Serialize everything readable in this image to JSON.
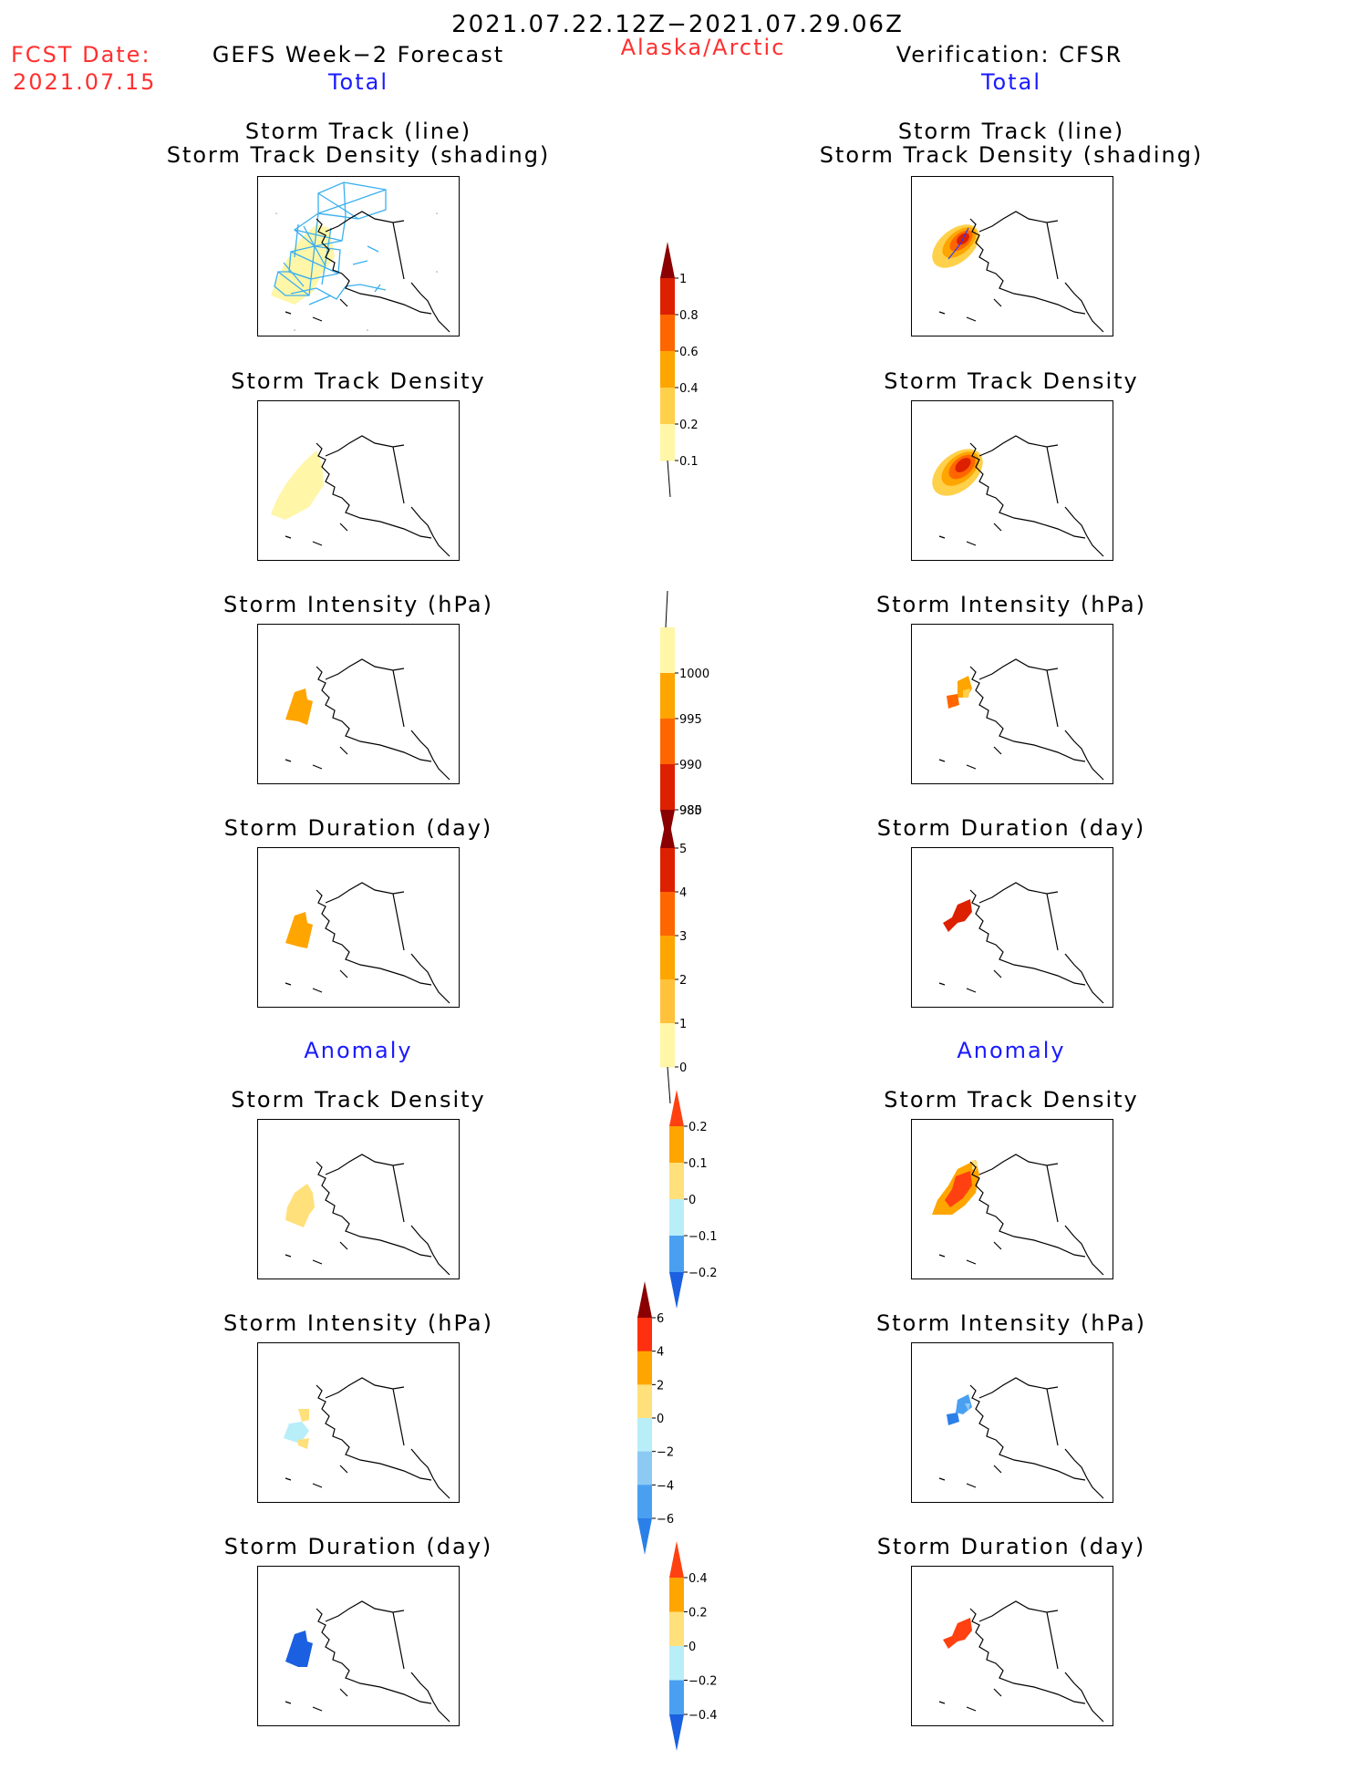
{
  "header": {
    "period": "2021.07.22.12Z−2021.07.29.06Z",
    "fcst_label": "FCST Date:",
    "fcst_date": "2021.07.15",
    "left_model": "GEFS Week−2 Forecast",
    "region": "Alaska/Arctic",
    "right_model": "Verification: CFSR"
  },
  "sections": {
    "total": "Total",
    "anomaly": "Anomaly"
  },
  "panels": {
    "track_title_1": "Storm Track (line)",
    "track_title_2": "Storm Track Density (shading)",
    "density": "Storm Track Density",
    "intensity": "Storm Intensity (hPa)",
    "duration": "Storm Duration (day)"
  },
  "colorbars": {
    "density_total": {
      "labels": [
        "1",
        "0.8",
        "0.6",
        "0.4",
        "0.2",
        "0.1"
      ],
      "colors": [
        "#8b0000",
        "#dc2000",
        "#ff6600",
        "#ffa500",
        "#ffd04a",
        "#fff6a8"
      ]
    },
    "intensity_total": {
      "labels": [
        "1000",
        "995",
        "990",
        "985",
        "980"
      ],
      "colors": [
        "#fff6a8",
        "#ffa500",
        "#ff6600",
        "#dc2000",
        "#8b0000"
      ]
    },
    "duration_total": {
      "labels": [
        "5",
        "4",
        "3",
        "2",
        "1",
        "0"
      ],
      "colors": [
        "#8b0000",
        "#dc2000",
        "#ff6600",
        "#ffa500",
        "#ffc23a",
        "#fff6a8"
      ]
    },
    "density_anom": {
      "labels": [
        "0.2",
        "0.1",
        "0",
        "−0.1",
        "−0.2"
      ],
      "colors": [
        "#ff4010",
        "#ffa500",
        "#ffe07a",
        "#b8eef8",
        "#4aa0f0",
        "#1a60e0"
      ]
    },
    "intensity_anom": {
      "labels": [
        "6",
        "4",
        "2",
        "0",
        "−2",
        "−4",
        "−6"
      ],
      "colors": [
        "#8b0000",
        "#ff3010",
        "#ffa500",
        "#ffe07a",
        "#b8eef8",
        "#8ccaf4",
        "#4aa0f0",
        "#2a80e8"
      ]
    },
    "duration_anom": {
      "labels": [
        "0.4",
        "0.2",
        "0",
        "−0.2",
        "−0.4"
      ],
      "colors": [
        "#ff4010",
        "#ffa500",
        "#ffe07a",
        "#b8eef8",
        "#4aa0f0",
        "#1a60e0"
      ]
    }
  },
  "colors": {
    "track_line": "#3ab0f0",
    "title_red": "#ff3030",
    "title_blue": "#1a1aff"
  }
}
